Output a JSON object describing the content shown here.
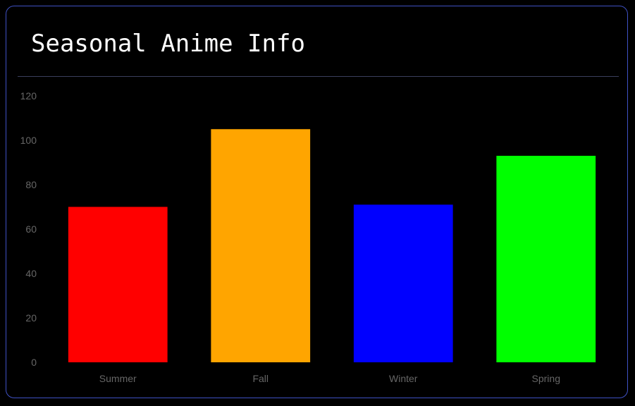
{
  "card": {
    "title": "Seasonal Anime Info"
  },
  "chart_data": {
    "type": "bar",
    "categories": [
      "Summer",
      "Fall",
      "Winter",
      "Spring"
    ],
    "values": [
      70,
      105,
      71,
      93
    ],
    "colors": [
      "#ff0000",
      "#ffa500",
      "#0000ff",
      "#00ff00"
    ],
    "title": "",
    "xlabel": "",
    "ylabel": "",
    "ylim": [
      0,
      120
    ],
    "yticks": [
      0,
      20,
      40,
      60,
      80,
      100,
      120
    ],
    "grid": false,
    "legend": "none"
  }
}
